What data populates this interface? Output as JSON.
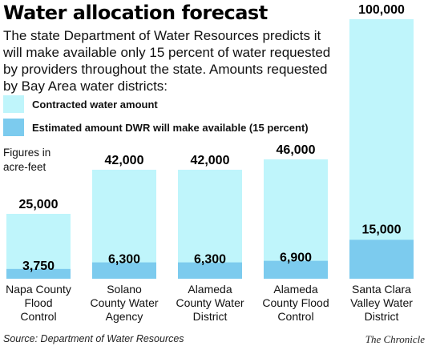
{
  "title": "Water allocation forecast",
  "subtitle": "The state Department of Water Resources predicts it will make available only 15 percent of water requested by providers throughout the state. Amounts requested by Bay Area water districts:",
  "legend": {
    "contracted": "Contracted water amount",
    "available": "Estimated amount DWR will make available (15 percent)"
  },
  "units_note": [
    "Figures in",
    "acre-feet"
  ],
  "colors": {
    "contracted": "#bff5fb",
    "available": "#7ccbee"
  },
  "chart_data": {
    "type": "bar",
    "categories": [
      [
        "Napa County",
        "Flood",
        "Control"
      ],
      [
        "Solano",
        "County Water",
        "Agency"
      ],
      [
        "Alameda",
        "County Water",
        "District"
      ],
      [
        "Alameda",
        "County Flood",
        "Control"
      ],
      [
        "Santa Clara",
        "Valley Water",
        "District"
      ]
    ],
    "series": [
      {
        "name": "Contracted water amount",
        "values": [
          25000,
          42000,
          42000,
          46000,
          100000
        ],
        "labels": [
          "25,000",
          "42,000",
          "42,000",
          "46,000",
          "100,000"
        ]
      },
      {
        "name": "Estimated amount DWR will make available (15 percent)",
        "values": [
          3750,
          6300,
          6300,
          6900,
          15000
        ],
        "labels": [
          "3,750",
          "6,300",
          "6,300",
          "6,900",
          "15,000"
        ]
      }
    ],
    "ylim": [
      0,
      100000
    ],
    "ylabel": "Figures in acre-feet"
  },
  "source": "Source: Department of Water Resources",
  "credit": "The Chronicle"
}
